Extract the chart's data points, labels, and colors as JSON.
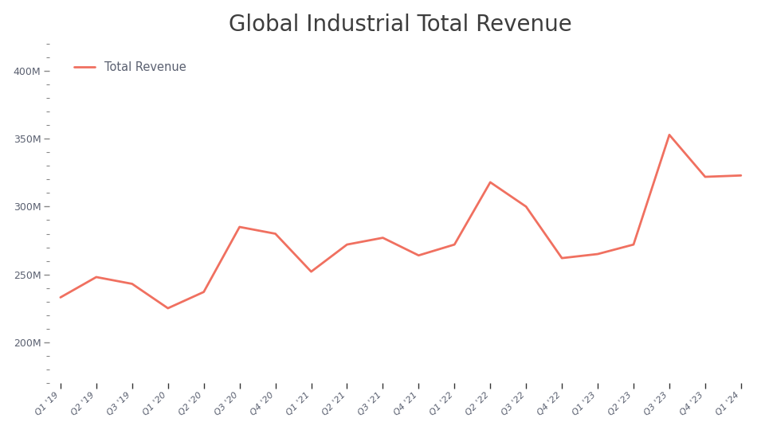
{
  "title": "Global Industrial Total Revenue",
  "title_fontsize": 20,
  "title_color": "#3d3d3d",
  "legend_label": "Total Revenue",
  "line_color": "#f07060",
  "line_width": 2.0,
  "background_color": "#ffffff",
  "x_labels": [
    "Q1 '19",
    "Q2 '19",
    "Q3 '19",
    "Q1 '20",
    "Q2 '20",
    "Q3 '20",
    "Q4 '20",
    "Q1 '21",
    "Q2 '21",
    "Q3 '21",
    "Q4 '21",
    "Q1 '22",
    "Q2 '22",
    "Q3 '22",
    "Q4 '22",
    "Q1 '23",
    "Q2 '23",
    "Q3 '23",
    "Q4 '23",
    "Q1 '24"
  ],
  "values": [
    233000000,
    248000000,
    243000000,
    225000000,
    237000000,
    285000000,
    280000000,
    252000000,
    272000000,
    277000000,
    264000000,
    272000000,
    318000000,
    300000000,
    262000000,
    265000000,
    272000000,
    353000000,
    322000000,
    323000000
  ],
  "ylim_min": 170000000,
  "ylim_max": 420000000,
  "ytick_major": [
    200000000,
    250000000,
    300000000,
    350000000,
    400000000
  ],
  "ytick_minor_step": 10000000,
  "tick_label_color": "#5a6070",
  "legend_label_color": "#5a6070",
  "legend_fontsize": 10.5
}
